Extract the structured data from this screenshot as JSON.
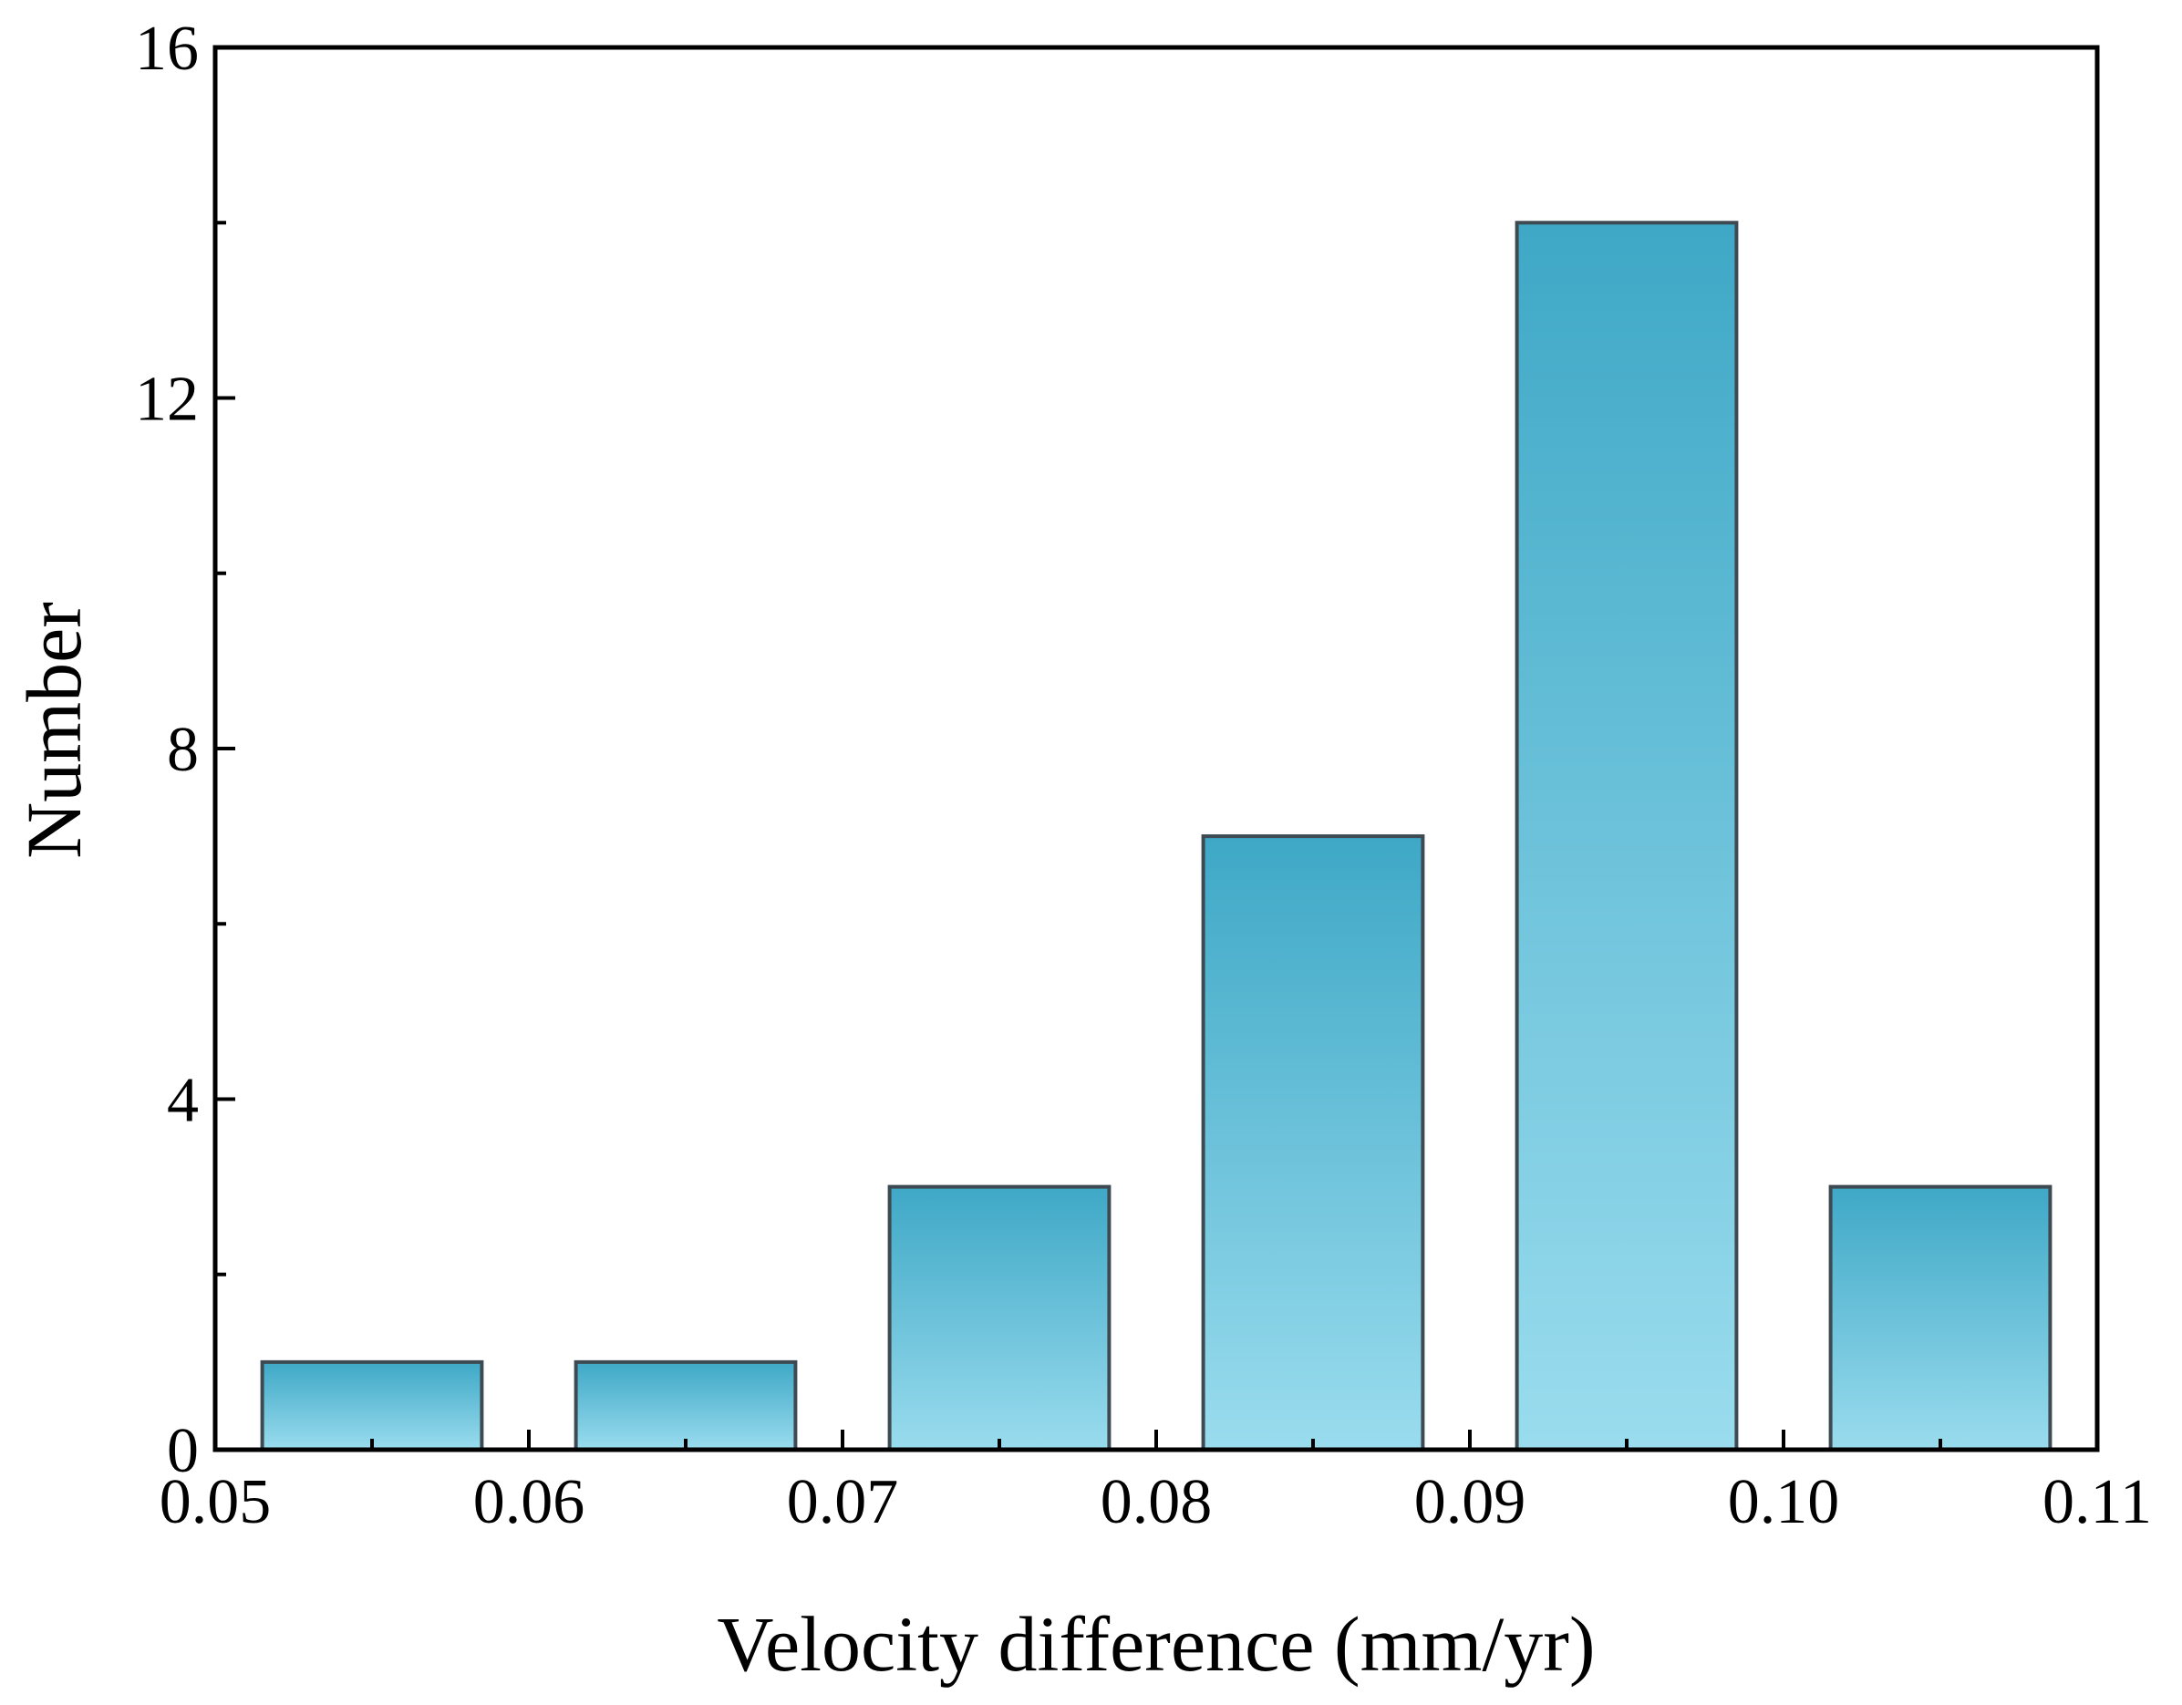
{
  "chart_data": {
    "type": "bar",
    "title": "",
    "xlabel": "Velocity difference (mm/yr)",
    "ylabel": "Number",
    "xlim": [
      0.05,
      0.11
    ],
    "ylim": [
      0,
      16
    ],
    "x_ticks": [
      {
        "value": 0.05,
        "label": "0.05"
      },
      {
        "value": 0.06,
        "label": "0.06"
      },
      {
        "value": 0.07,
        "label": "0.07"
      },
      {
        "value": 0.08,
        "label": "0.08"
      },
      {
        "value": 0.09,
        "label": "0.09"
      },
      {
        "value": 0.1,
        "label": "0.10"
      },
      {
        "value": 0.11,
        "label": "0.11"
      }
    ],
    "x_minor_ticks": [
      0.055,
      0.065,
      0.075,
      0.085,
      0.095,
      0.105
    ],
    "y_ticks": [
      {
        "value": 0,
        "label": "0"
      },
      {
        "value": 4,
        "label": "4"
      },
      {
        "value": 8,
        "label": "8"
      },
      {
        "value": 12,
        "label": "12"
      },
      {
        "value": 16,
        "label": "16"
      }
    ],
    "y_minor_ticks": [
      2,
      6,
      10,
      14
    ],
    "bins": [
      {
        "x_start": 0.0515,
        "x_end": 0.0585,
        "value": 1
      },
      {
        "x_start": 0.0615,
        "x_end": 0.0685,
        "value": 1
      },
      {
        "x_start": 0.0715,
        "x_end": 0.0785,
        "value": 3
      },
      {
        "x_start": 0.0815,
        "x_end": 0.0885,
        "value": 7
      },
      {
        "x_start": 0.0915,
        "x_end": 0.0985,
        "value": 14
      },
      {
        "x_start": 0.1015,
        "x_end": 0.1085,
        "value": 3
      }
    ],
    "colors": {
      "bar_top": "#3ea8c6",
      "bar_bottom": "#9adcee",
      "bar_edge": "#3d4a52",
      "axis": "#000000"
    }
  }
}
